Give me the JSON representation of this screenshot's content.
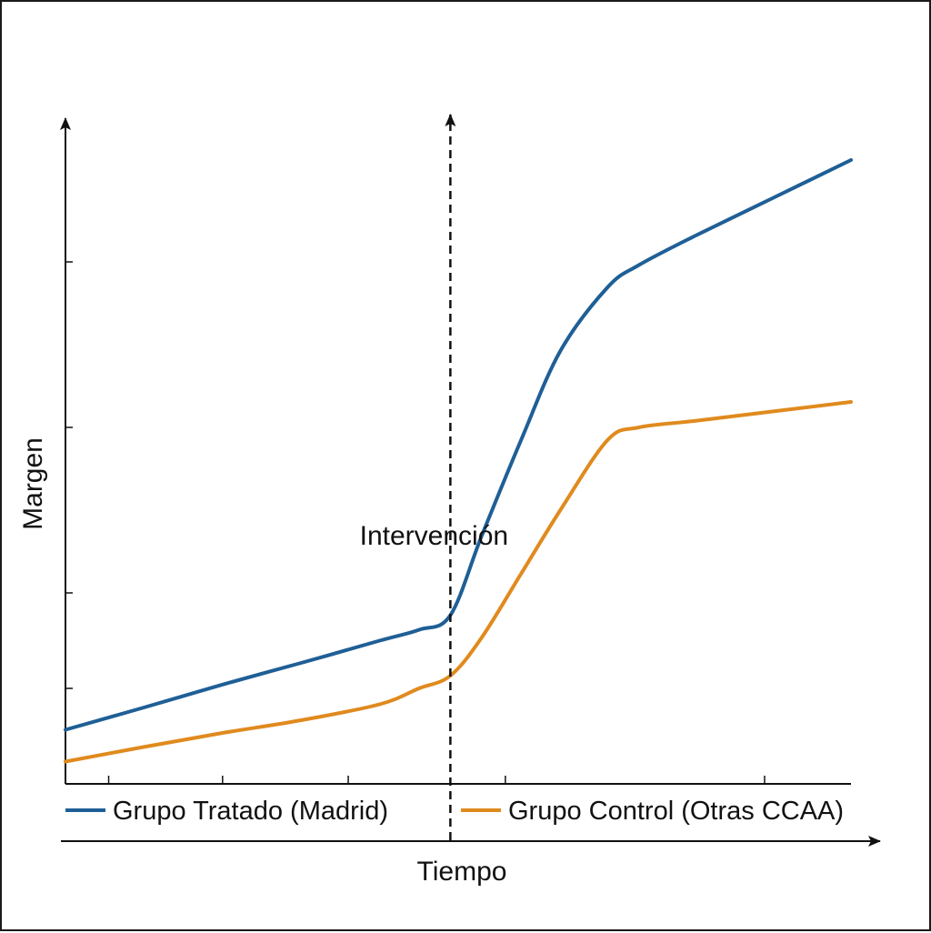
{
  "chart_data": {
    "type": "line",
    "title": "",
    "xlabel": "Tiempo",
    "ylabel": "Margen",
    "xlim": [
      0,
      10
    ],
    "ylim": [
      0,
      10
    ],
    "x_ticks": [
      0.55,
      2.0,
      3.6,
      5.6,
      8.9
    ],
    "y_ticks": [
      1.5,
      3.0,
      5.6,
      8.2
    ],
    "grid": false,
    "legend_position": "bottom",
    "annotations": [
      {
        "type": "vline",
        "x": 4.9,
        "label": "Intervención"
      }
    ],
    "series": [
      {
        "name": "Grupo Tratado (Madrid)",
        "color": "#1f5f96",
        "x": [
          0,
          1.0,
          2.0,
          3.0,
          4.0,
          4.5,
          4.9,
          5.3,
          5.8,
          6.3,
          6.9,
          7.3,
          8.0,
          9.0,
          10.0
        ],
        "y": [
          0.85,
          1.2,
          1.56,
          1.9,
          2.25,
          2.42,
          2.65,
          3.9,
          5.4,
          6.8,
          7.8,
          8.15,
          8.6,
          9.2,
          9.8
        ]
      },
      {
        "name": "Grupo Control (Otras CCAA)",
        "color": "#e08a1e",
        "x": [
          0,
          1.0,
          2.0,
          3.0,
          4.0,
          4.5,
          4.9,
          5.3,
          5.8,
          6.3,
          6.9,
          7.3,
          8.0,
          9.0,
          10.0
        ],
        "y": [
          0.35,
          0.58,
          0.8,
          1.0,
          1.25,
          1.5,
          1.7,
          2.3,
          3.3,
          4.3,
          5.4,
          5.6,
          5.7,
          5.85,
          6.0
        ]
      }
    ]
  }
}
